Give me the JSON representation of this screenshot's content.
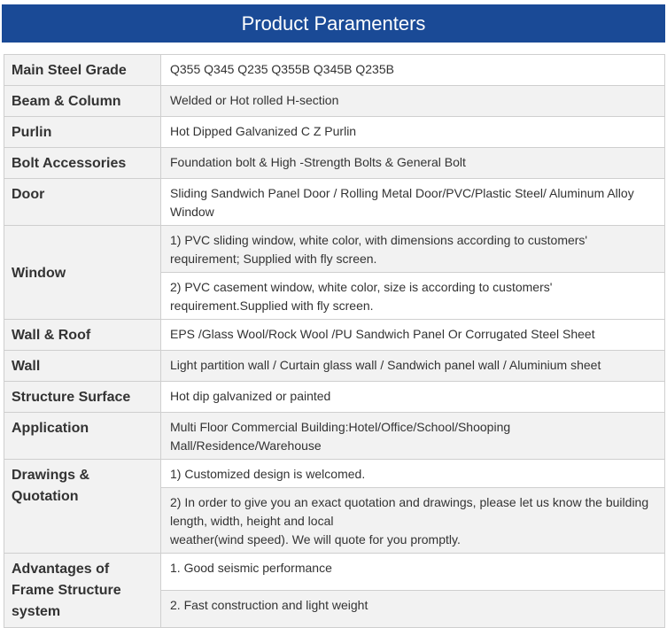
{
  "title": "Product Paramenters",
  "rows": {
    "steel_grade": {
      "label": "Main Steel Grade",
      "value": "Q355 Q345 Q235 Q355B Q345B Q235B"
    },
    "beam_column": {
      "label": "Beam & Column",
      "value": "Welded or Hot rolled H-section"
    },
    "purlin": {
      "label": "Purlin",
      "value": "Hot Dipped Galvanized C Z Purlin"
    },
    "bolt": {
      "label": "Bolt Accessories",
      "value": "Foundation bolt & High -Strength Bolts & General Bolt"
    },
    "door": {
      "label": "Door",
      "value": "Sliding Sandwich Panel Door / Rolling Metal Door/PVC/Plastic Steel/ Aluminum Alloy Window"
    },
    "window": {
      "label": "Window",
      "values": [
        "1) PVC sliding window, white color, with dimensions according to customers' requirement; Supplied with fly screen.",
        "2) PVC casement window, white color, size is according to customers' requirement.Supplied with fly screen."
      ]
    },
    "wall_roof": {
      "label": "Wall & Roof",
      "value": "EPS /Glass Wool/Rock Wool /PU Sandwich Panel Or Corrugated Steel Sheet"
    },
    "wall": {
      "label": "Wall",
      "value": "Light partition wall / Curtain glass wall / Sandwich panel wall / Aluminium sheet"
    },
    "surface": {
      "label": "Structure Surface",
      "value": "Hot dip galvanized or painted"
    },
    "application": {
      "label": "Application",
      "value": "Multi Floor Commercial Building:Hotel/Office/School/Shooping Mall/Residence/Warehouse"
    },
    "drawings": {
      "label": "Drawings & Quotation",
      "values": [
        "1) Customized design is welcomed.",
        "2) In order to give you an exact quotation and drawings, please let us know the building length, width, height and local",
        "weather(wind speed). We will quote for you promptly."
      ]
    },
    "advantages": {
      "label": "Advantages of Frame Structure system",
      "values": [
        "1. Good seismic performance",
        "2. Fast construction and light weight"
      ]
    }
  }
}
